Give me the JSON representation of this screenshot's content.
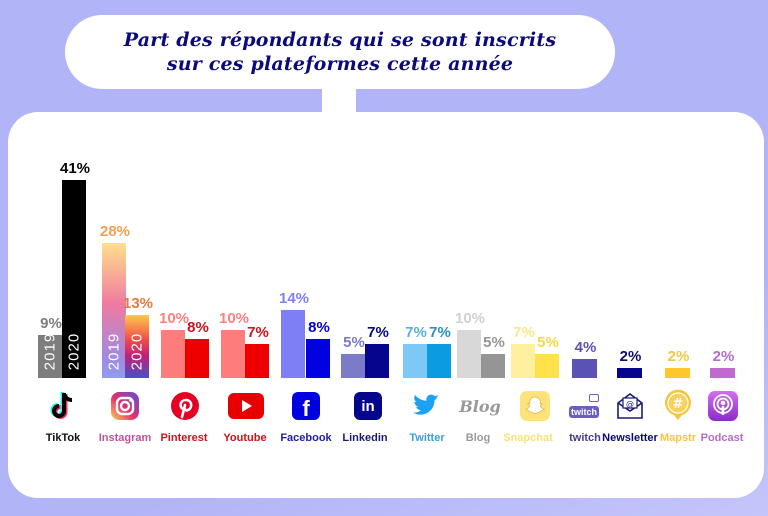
{
  "title": {
    "line1": "Part des répondants qui se sont inscrits",
    "line2": "sur ces plateformes cette année"
  },
  "years": {
    "y2019": "2019",
    "y2020": "2020"
  },
  "platforms": [
    {
      "name": "TikTok",
      "v2019": "9%",
      "v2020": "41%",
      "label_color": "#111111"
    },
    {
      "name": "Instagram",
      "v2019": "28%",
      "v2020": "13%",
      "label_color": "#c0529c"
    },
    {
      "name": "Pinterest",
      "v2019": "10%",
      "v2020": "8%",
      "label_color": "#d0121c"
    },
    {
      "name": "Youtube",
      "v2019": "10%",
      "v2020": "7%",
      "label_color": "#d0121c"
    },
    {
      "name": "Facebook",
      "v2019": "14%",
      "v2020": "8%",
      "label_color": "#2020a0"
    },
    {
      "name": "Linkedin",
      "v2019": "5%",
      "v2020": "7%",
      "label_color": "#1a1a70"
    },
    {
      "name": "Twitter",
      "v2019": "7%",
      "v2020": "7%",
      "label_color": "#3aa0d8"
    },
    {
      "name": "Blog",
      "v2019": "10%",
      "v2020": "5%",
      "label_color": "#999999"
    },
    {
      "name": "Snapchat",
      "v2019": "7%",
      "v2020": "5%",
      "label_color": "#f5e27a"
    },
    {
      "name": "twitch",
      "v2020": "4%",
      "label_color": "#4a3d8f"
    },
    {
      "name": "Newsletter",
      "v2020": "2%",
      "label_color": "#0b0b6e"
    },
    {
      "name": "Mapstr",
      "v2020": "2%",
      "label_color": "#f5c542"
    },
    {
      "name": "Podcast",
      "v2020": "2%",
      "label_color": "#b36cc8"
    }
  ],
  "icons": {
    "blog_text": "Blog",
    "twitch_text": "twitch",
    "linkedin_text": "in",
    "facebook_text": "f",
    "mapstr_text": "#",
    "newsletter_text": "@"
  },
  "colors": {
    "background": "#b2b4f8",
    "title": "#0a0a7a",
    "tiktok_2019": "#7d7d7d",
    "tiktok_2020": "#000000",
    "pinterest_2019": "#ff7c7c",
    "pinterest_2020": "#ee0000",
    "youtube_2019": "#ff7c7c",
    "youtube_2020": "#ee0000",
    "facebook_2019": "#7f7ff5",
    "facebook_2020": "#0000e0",
    "linkedin_2019": "#7b7bc8",
    "linkedin_2020": "#06068c",
    "twitter_2019": "#7cc9f5",
    "twitter_2020": "#0a9be0",
    "blog_2019": "#d8d8d8",
    "blog_2020": "#959595",
    "snapchat_2019": "#fff0a0",
    "snapchat_2020": "#ffe14a",
    "twitch": "#5a52b5",
    "newsletter": "#06068c",
    "mapstr": "#ffc72c",
    "podcast": "#c06ad0"
  },
  "chart_data": {
    "type": "bar",
    "title": "Part des répondants qui se sont inscrits sur ces plateformes cette année",
    "categories": [
      "TikTok",
      "Instagram",
      "Pinterest",
      "Youtube",
      "Facebook",
      "Linkedin",
      "Twitter",
      "Blog",
      "Snapchat",
      "twitch",
      "Newsletter",
      "Mapstr",
      "Podcast"
    ],
    "series": [
      {
        "name": "2019",
        "values": [
          9,
          28,
          10,
          10,
          14,
          5,
          7,
          10,
          7,
          null,
          null,
          null,
          null
        ]
      },
      {
        "name": "2020",
        "values": [
          41,
          13,
          8,
          7,
          8,
          7,
          7,
          5,
          5,
          4,
          2,
          2,
          2
        ]
      }
    ],
    "xlabel": "",
    "ylabel": "%",
    "ylim": [
      0,
      45
    ],
    "grid": false,
    "legend": "year labels inside TikTok and Instagram bars"
  }
}
